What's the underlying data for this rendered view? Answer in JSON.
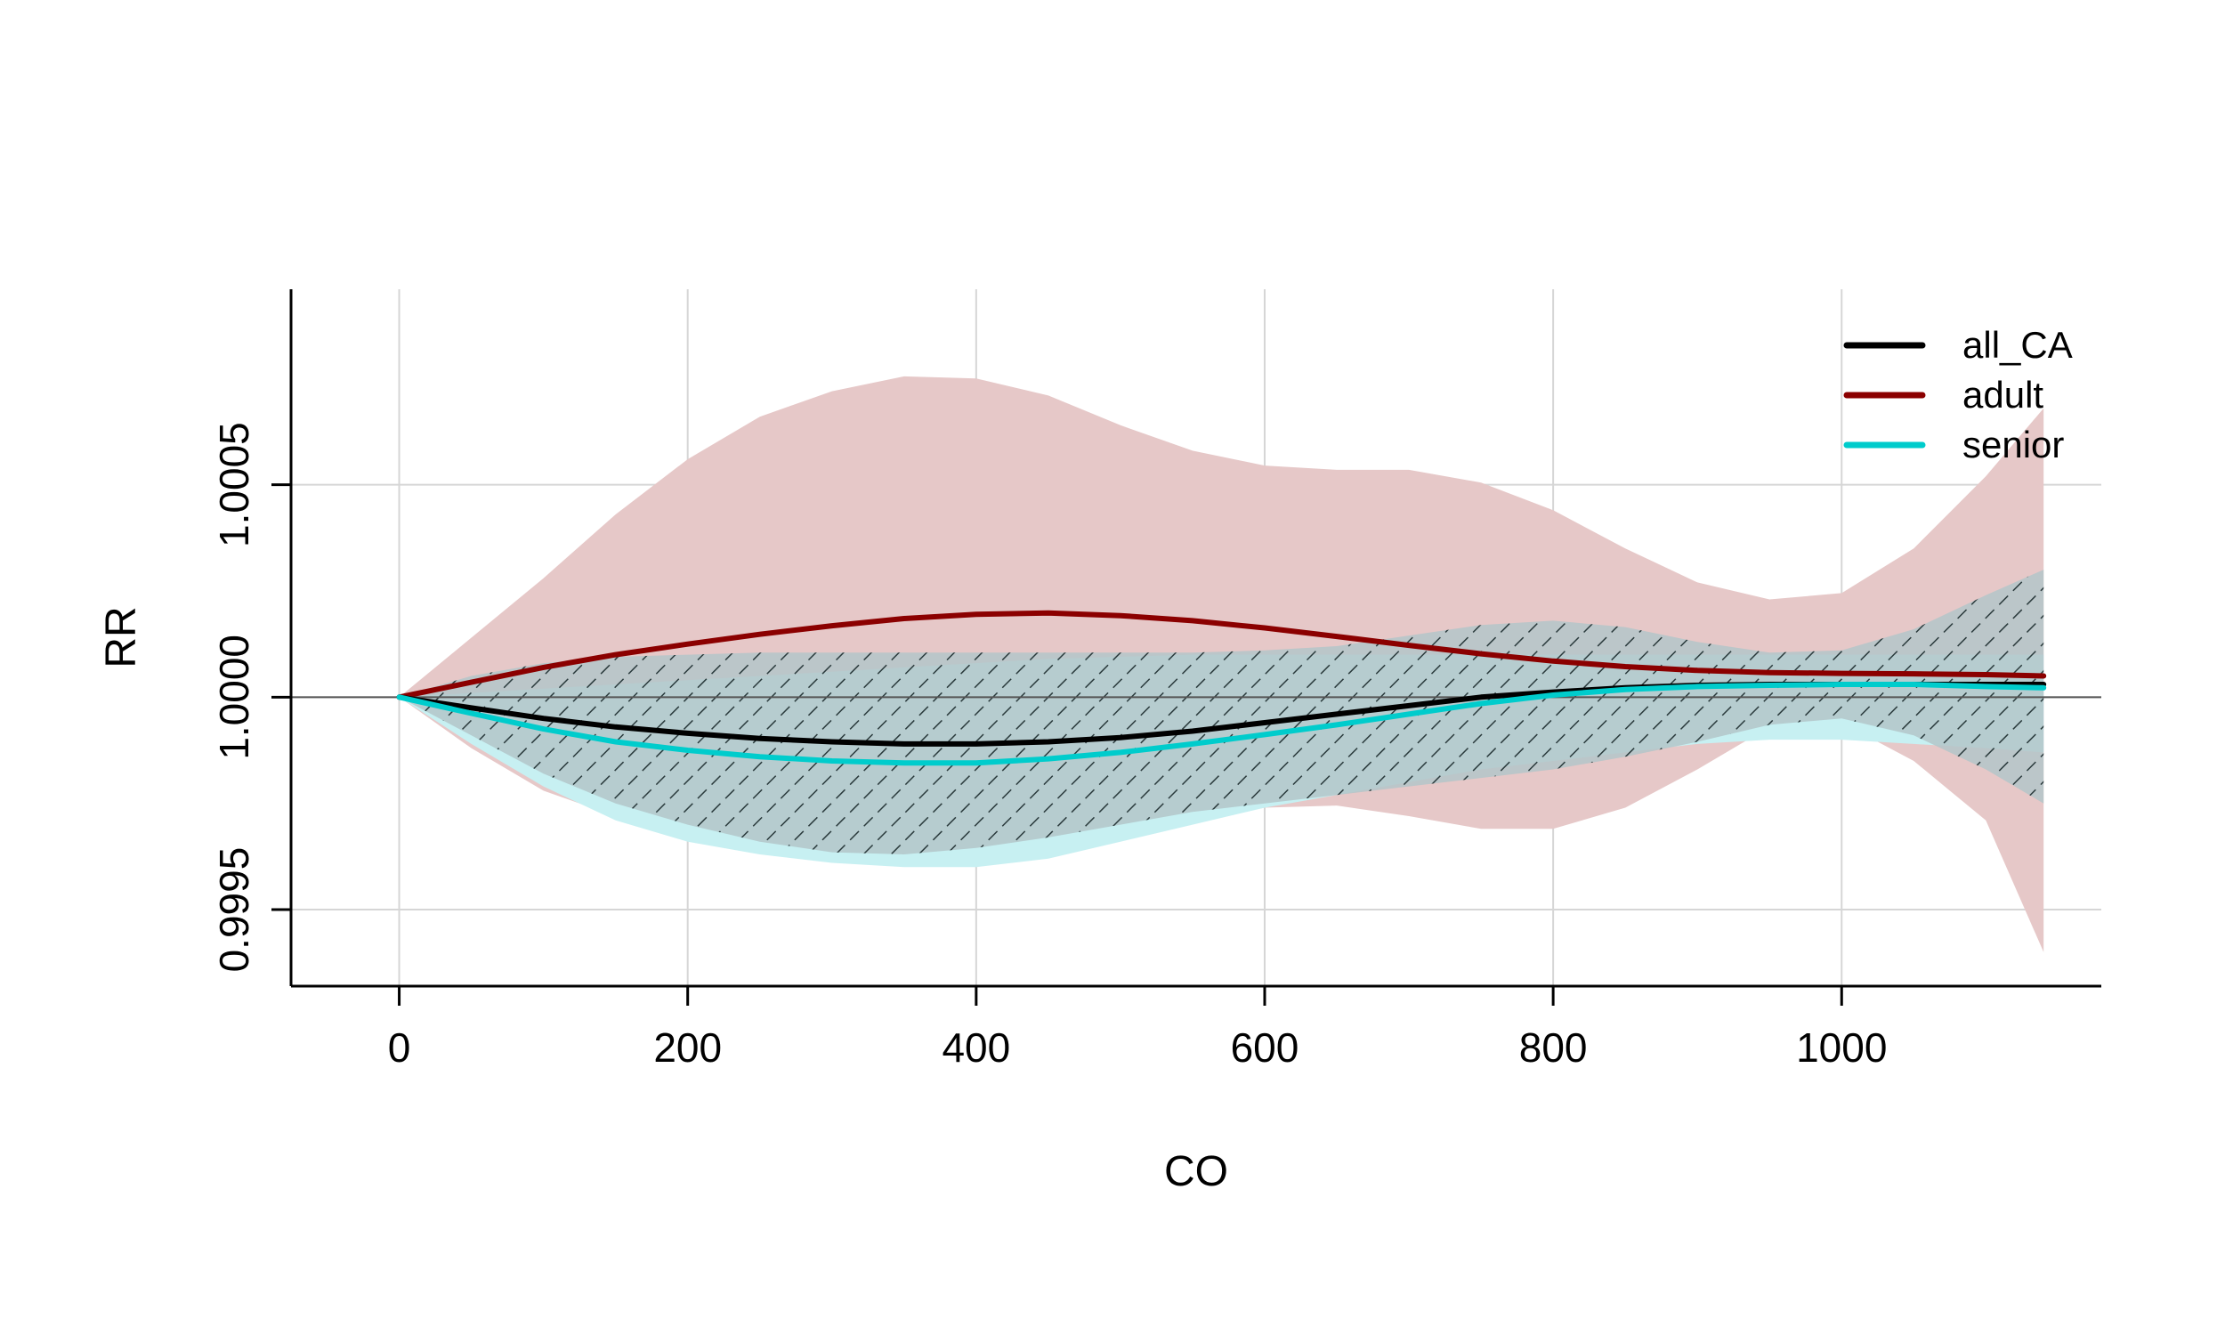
{
  "chart_data": {
    "type": "line",
    "title": "",
    "xlabel": "CO",
    "ylabel": "RR",
    "xlim": [
      -75,
      1180
    ],
    "ylim": [
      0.99932,
      1.00096
    ],
    "xticks": [
      0,
      200,
      400,
      600,
      800,
      1000
    ],
    "yticks": [
      0.9995,
      1.0,
      1.0005
    ],
    "ytick_labels": [
      "0.9995",
      "1.0000",
      "1.0005"
    ],
    "grid": true,
    "reference_line": 1.0,
    "legend_position": "top-right",
    "x": [
      0,
      50,
      100,
      150,
      200,
      250,
      300,
      350,
      400,
      450,
      500,
      550,
      600,
      650,
      700,
      750,
      800,
      850,
      900,
      950,
      1000,
      1050,
      1100,
      1140
    ],
    "series": [
      {
        "name": "all_CA",
        "color": "#000000",
        "fill": "#b3c6c9",
        "hatched": true,
        "values": [
          1.0,
          0.999975,
          0.99995,
          0.99993,
          0.999915,
          0.999903,
          0.999895,
          0.99989,
          0.99989,
          0.999895,
          0.999905,
          0.99992,
          0.99994,
          0.99996,
          0.99998,
          1.0,
          1.000012,
          1.000022,
          1.000028,
          1.00003,
          1.00003,
          1.00003,
          1.00003,
          1.00003
        ],
        "lower": [
          1.0,
          0.99991,
          0.99982,
          0.99975,
          0.9997,
          0.99966,
          0.999635,
          0.99963,
          0.999645,
          0.99967,
          0.9997,
          0.99973,
          0.99975,
          0.99977,
          0.99979,
          0.99981,
          0.99983,
          0.99986,
          0.999895,
          0.999935,
          0.99995,
          0.99991,
          0.99983,
          0.99975
        ],
        "upper": [
          1.0,
          1.00005,
          1.00008,
          1.000095,
          1.0001,
          1.000105,
          1.000105,
          1.000105,
          1.000105,
          1.000105,
          1.000105,
          1.000105,
          1.00011,
          1.00012,
          1.000145,
          1.00017,
          1.00018,
          1.000165,
          1.00013,
          1.000105,
          1.00011,
          1.00016,
          1.00024,
          1.0003
        ]
      },
      {
        "name": "adult",
        "color": "#8b0000",
        "fill": "#e6c8c8",
        "hatched": false,
        "values": [
          1.0,
          1.000035,
          1.00007,
          1.0001,
          1.000125,
          1.000148,
          1.000168,
          1.000185,
          1.000195,
          1.000198,
          1.000192,
          1.00018,
          1.000163,
          1.000143,
          1.000122,
          1.000102,
          1.000085,
          1.000072,
          1.000063,
          1.000058,
          1.000056,
          1.000055,
          1.000053,
          1.00005
        ],
        "lower": [
          1.0,
          0.99988,
          0.99978,
          0.99972,
          0.99968,
          0.99966,
          0.999645,
          0.99964,
          0.99964,
          0.999655,
          0.99968,
          0.99971,
          0.99974,
          0.999745,
          0.99972,
          0.99969,
          0.99969,
          0.99974,
          0.99983,
          0.99993,
          0.99994,
          0.99985,
          0.99971,
          0.9994
        ],
        "upper": [
          1.0,
          1.00014,
          1.00028,
          1.00043,
          1.00056,
          1.00066,
          1.00072,
          1.000755,
          1.00075,
          1.00071,
          1.00064,
          1.00058,
          1.000545,
          1.000535,
          1.000535,
          1.000505,
          1.00044,
          1.00035,
          1.00027,
          1.00023,
          1.000245,
          1.00035,
          1.00052,
          1.00068
        ]
      },
      {
        "name": "senior",
        "color": "#00cccc",
        "fill": "#c7f0f2",
        "hatched": false,
        "values": [
          1.0,
          0.999962,
          0.999925,
          0.999895,
          0.999875,
          0.99986,
          0.99985,
          0.999845,
          0.999845,
          0.999855,
          0.99987,
          0.99989,
          0.999912,
          0.999935,
          0.99996,
          0.999985,
          1.000005,
          1.000018,
          1.000025,
          1.000028,
          1.00003,
          1.00003,
          1.000025,
          1.000022
        ],
        "lower": [
          1.0,
          0.99989,
          0.99979,
          0.99971,
          0.99966,
          0.99963,
          0.99961,
          0.9996,
          0.9996,
          0.99962,
          0.99966,
          0.9997,
          0.99974,
          0.99977,
          0.9998,
          0.99983,
          0.99985,
          0.99987,
          0.99989,
          0.9999,
          0.9999,
          0.99989,
          0.99988,
          0.99987
        ],
        "upper": [
          1.0,
          1.00001,
          1.00002,
          1.00003,
          1.00004,
          1.00005,
          1.00006,
          1.00007,
          1.00008,
          1.00009,
          1.000095,
          1.0001,
          1.0001,
          1.0001,
          1.0001,
          1.0001,
          1.0001,
          1.0001,
          1.0001,
          1.0001,
          1.0001,
          1.0001,
          1.0001,
          1.0001
        ]
      }
    ]
  }
}
